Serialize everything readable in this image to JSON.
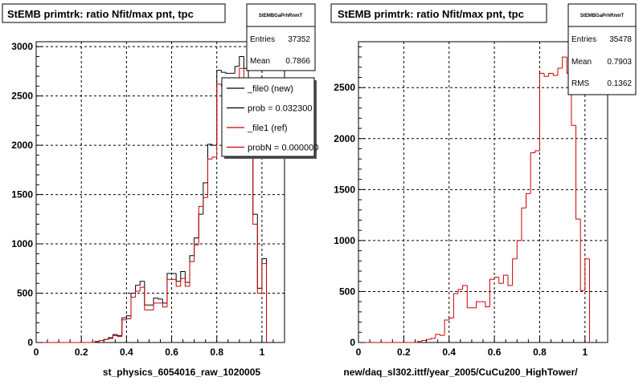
{
  "footer": "",
  "chart_data": [
    {
      "type": "bar",
      "title": "StEMB primtrk: ratio Nfit/max pnt, tpc",
      "xlabel": "st_physics_6054016_raw_1020005",
      "ylabel": "",
      "xlim": [
        0,
        1.1
      ],
      "ylim": [
        0,
        3050
      ],
      "xticks": [
        "0",
        "0.2",
        "0.4",
        "0.6",
        "0.8",
        "1"
      ],
      "yticks": [
        "0",
        "500",
        "1000",
        "1500",
        "2000",
        "2500",
        "3000"
      ],
      "grid": true,
      "stats": {
        "name": "StEMBGaPrhRnmT",
        "entries_label": "Entries",
        "entries": "37352",
        "mean_label": "Mean",
        "mean": "0.7866"
      },
      "legend": {
        "position": "top-right",
        "entries": [
          {
            "label": "_file0 (new)",
            "color": "#000000"
          },
          {
            "label": "prob = 0.032300",
            "color": "#000000"
          },
          {
            "label": "_file1 (ref)",
            "color": "#cc0000"
          },
          {
            "label": "probN = 0.000000",
            "color": "#cc0000"
          }
        ]
      },
      "bin_width": 0.02,
      "series": [
        {
          "name": "_file0 (new)",
          "color": "#000000",
          "x": [
            0.26,
            0.28,
            0.3,
            0.32,
            0.34,
            0.36,
            0.38,
            0.4,
            0.42,
            0.44,
            0.46,
            0.48,
            0.5,
            0.52,
            0.54,
            0.56,
            0.58,
            0.6,
            0.62,
            0.64,
            0.66,
            0.68,
            0.7,
            0.72,
            0.74,
            0.76,
            0.78,
            0.8,
            0.82,
            0.84,
            0.86,
            0.88,
            0.9,
            0.92,
            0.94,
            0.96,
            0.98,
            1.0
          ],
          "values": [
            10,
            20,
            30,
            50,
            80,
            70,
            250,
            270,
            500,
            580,
            620,
            380,
            380,
            450,
            440,
            400,
            700,
            700,
            620,
            720,
            610,
            880,
            1060,
            1300,
            1620,
            2010,
            2000,
            2760,
            2740,
            2730,
            2730,
            2800,
            2900,
            2780,
            2200,
            1300,
            550,
            850
          ]
        },
        {
          "name": "_file1 (ref)",
          "color": "#cc0000",
          "x": [
            0.26,
            0.28,
            0.3,
            0.32,
            0.34,
            0.36,
            0.38,
            0.4,
            0.42,
            0.44,
            0.46,
            0.48,
            0.5,
            0.52,
            0.54,
            0.56,
            0.58,
            0.6,
            0.62,
            0.64,
            0.66,
            0.68,
            0.7,
            0.72,
            0.74,
            0.76,
            0.78,
            0.8,
            0.82,
            0.84,
            0.86,
            0.88,
            0.9,
            0.92,
            0.94,
            0.96,
            0.98,
            1.0
          ],
          "values": [
            10,
            20,
            30,
            40,
            70,
            60,
            230,
            240,
            460,
            520,
            560,
            330,
            330,
            400,
            400,
            360,
            640,
            640,
            570,
            650,
            570,
            820,
            990,
            1380,
            1470,
            1860,
            1880,
            2620,
            2600,
            2620,
            2600,
            2680,
            2780,
            2650,
            2130,
            1200,
            500,
            800
          ]
        }
      ]
    },
    {
      "type": "bar",
      "title": "StEMB primtrk: ratio Nfit/max pnt, tpc",
      "xlabel": "new/daq_sl302.ittf/year_2005/CuCu200_HighTower/",
      "ylabel": "",
      "xlim": [
        0,
        1.1
      ],
      "ylim": [
        0,
        2950
      ],
      "xticks": [
        "0",
        "0.2",
        "0.4",
        "0.6",
        "0.8",
        "1"
      ],
      "yticks": [
        "0",
        "500",
        "1000",
        "1500",
        "2000",
        "2500"
      ],
      "grid": true,
      "stats": {
        "name": "StEMBGaPrhRnmT",
        "entries_label": "Entries",
        "entries": "35478",
        "mean_label": "Mean",
        "mean": "0.7903",
        "rms_label": "RMS",
        "rms": "0.1362"
      },
      "bin_width": 0.02,
      "series": [
        {
          "name": "",
          "color": "#cc0000",
          "x": [
            0.26,
            0.28,
            0.3,
            0.32,
            0.34,
            0.36,
            0.38,
            0.4,
            0.42,
            0.44,
            0.46,
            0.48,
            0.5,
            0.52,
            0.54,
            0.56,
            0.58,
            0.6,
            0.62,
            0.64,
            0.66,
            0.68,
            0.7,
            0.72,
            0.74,
            0.76,
            0.78,
            0.8,
            0.82,
            0.84,
            0.86,
            0.88,
            0.9,
            0.92,
            0.94,
            0.96,
            0.98,
            1.0
          ],
          "values": [
            10,
            20,
            30,
            40,
            80,
            70,
            220,
            240,
            480,
            520,
            560,
            340,
            340,
            400,
            400,
            350,
            620,
            640,
            580,
            660,
            560,
            820,
            1000,
            1320,
            1460,
            1860,
            1880,
            2640,
            2610,
            2640,
            2620,
            2690,
            2800,
            2640,
            2130,
            1210,
            510,
            820
          ]
        }
      ]
    }
  ]
}
